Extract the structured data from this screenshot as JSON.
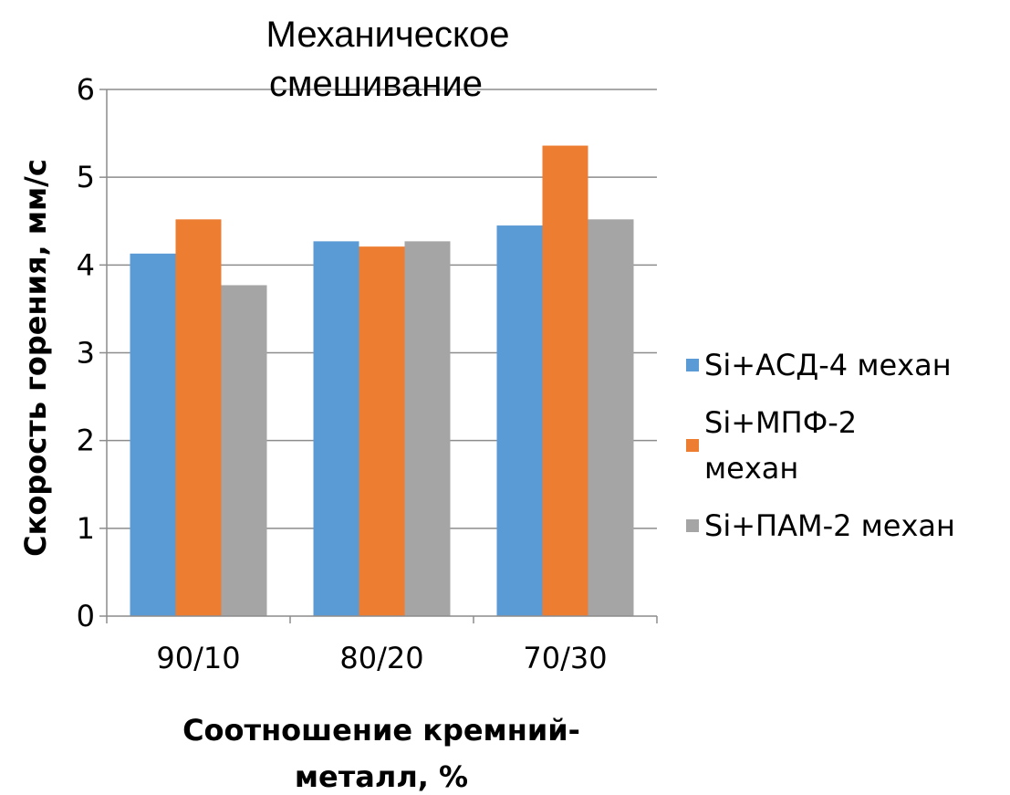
{
  "chart_data": {
    "type": "bar",
    "title_lines": [
      "Механическое",
      "смешивание"
    ],
    "ylabel": "Скорость горения, мм/с",
    "xlabel_lines": [
      "Соотношение кремний-",
      "металл, %"
    ],
    "categories": [
      "90/10",
      "80/20",
      "70/30"
    ],
    "yticks": [
      "0",
      "1",
      "2",
      "3",
      "4",
      "5",
      "6"
    ],
    "ylim": [
      0,
      6
    ],
    "grid": true,
    "legend_position": "right",
    "series": [
      {
        "name": "Si+АСД-4 механ",
        "name_lines": [
          "Si+АСД-4 механ"
        ],
        "color": "#5b9bd5",
        "values": [
          4.13,
          4.27,
          4.45
        ]
      },
      {
        "name": "Si+МПФ-2 механ",
        "name_lines": [
          "Si+МПФ-2",
          "механ"
        ],
        "color": "#ed7d31",
        "values": [
          4.52,
          4.21,
          5.36
        ]
      },
      {
        "name": "Si+ПАМ-2 механ",
        "name_lines": [
          "Si+ПАМ-2 механ"
        ],
        "color": "#a5a5a5",
        "values": [
          3.77,
          4.27,
          4.52
        ]
      }
    ]
  }
}
